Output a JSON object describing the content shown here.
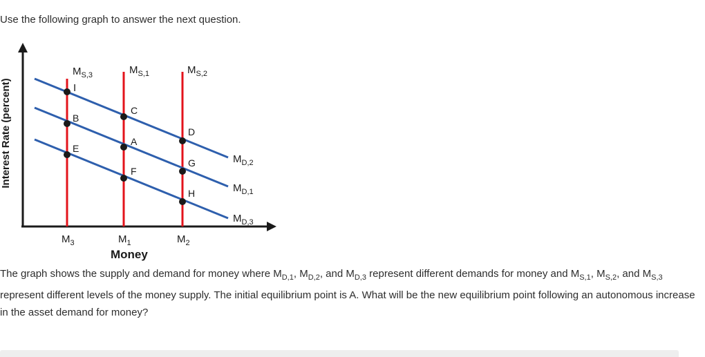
{
  "intro_text": "Use the following graph to answer the next question.",
  "graph": {
    "y_axis_label": "Interest Rate (percent)",
    "x_axis_label": "Money",
    "supply_curves": [
      {
        "base": "M",
        "sub": "S,3"
      },
      {
        "base": "M",
        "sub": "S,1"
      },
      {
        "base": "M",
        "sub": "S,2"
      }
    ],
    "demand_curves": [
      {
        "base": "M",
        "sub": "D,2"
      },
      {
        "base": "M",
        "sub": "D,1"
      },
      {
        "base": "M",
        "sub": "D,3"
      }
    ],
    "x_ticks": [
      {
        "base": "M",
        "sub": "3"
      },
      {
        "base": "M",
        "sub": "1"
      },
      {
        "base": "M",
        "sub": "2"
      }
    ],
    "points": [
      "I",
      "B",
      "E",
      "C",
      "A",
      "F",
      "D",
      "G",
      "H"
    ],
    "colors": {
      "supply": "#e3131b",
      "demand": "#2e5fad",
      "axis": "#1a1a1a",
      "point": "#1a1a1a"
    }
  },
  "question": {
    "p1": "The graph shows the supply and demand for money where M",
    "s1": "D,1",
    "p2": ", M",
    "s2": "D,2",
    "p3": ", and M",
    "s3": "D,3",
    "p4": " represent different demands for money and M",
    "s4": "S,1",
    "p5": ", M",
    "s5": "S,2",
    "p6": ", and M",
    "s6": "S,3",
    "p7": " represent different levels of the money supply. The initial equilibrium point is A. What will be the new equilibrium point following an autonomous increase in the asset demand for money?"
  }
}
